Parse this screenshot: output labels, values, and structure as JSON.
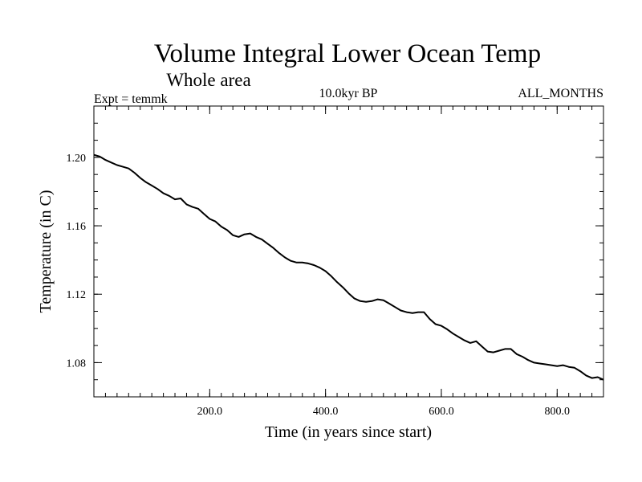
{
  "chart_data": {
    "type": "line",
    "title": "Volume Integral Lower Ocean Temp",
    "subtitle": "Whole area",
    "experiment": "Expt = temmk",
    "period": "10.0kyr BP",
    "months": "ALL_MONTHS",
    "xlabel": "Time (in years since start)",
    "ylabel": "Temperature (in C)",
    "xlim": [
      0,
      880
    ],
    "ylim": [
      1.06,
      1.23
    ],
    "x_major_ticks": [
      200,
      400,
      600,
      800
    ],
    "x_tick_labels": [
      "200.0",
      "400.0",
      "600.0",
      "800.0"
    ],
    "x_minor_step": 20,
    "y_major_ticks": [
      1.08,
      1.12,
      1.16,
      1.2
    ],
    "y_tick_labels": [
      "1.08",
      "1.12",
      "1.16",
      "1.20"
    ],
    "y_minor_step": 0.01,
    "grid": false,
    "series": [
      {
        "name": "temperature",
        "color": "#000000",
        "x": [
          0,
          10,
          20,
          30,
          40,
          50,
          60,
          70,
          80,
          90,
          100,
          110,
          120,
          130,
          140,
          150,
          160,
          170,
          180,
          190,
          200,
          210,
          220,
          230,
          240,
          250,
          260,
          270,
          280,
          290,
          300,
          310,
          320,
          330,
          340,
          350,
          360,
          370,
          380,
          390,
          400,
          410,
          420,
          430,
          440,
          450,
          460,
          470,
          480,
          490,
          500,
          510,
          520,
          530,
          540,
          550,
          560,
          570,
          580,
          590,
          600,
          610,
          620,
          630,
          640,
          650,
          660,
          670,
          680,
          690,
          700,
          710,
          720,
          730,
          740,
          750,
          760,
          770,
          780,
          790,
          800,
          810,
          820,
          830,
          840,
          850,
          860,
          870,
          880
        ],
        "values": [
          1.2015,
          1.2005,
          1.1985,
          1.197,
          1.1955,
          1.1945,
          1.1935,
          1.191,
          1.188,
          1.1855,
          1.1835,
          1.1815,
          1.179,
          1.1775,
          1.1755,
          1.176,
          1.1725,
          1.171,
          1.17,
          1.167,
          1.164,
          1.1625,
          1.1595,
          1.1575,
          1.1545,
          1.1535,
          1.155,
          1.1555,
          1.1535,
          1.152,
          1.1495,
          1.147,
          1.144,
          1.1415,
          1.1395,
          1.1385,
          1.1385,
          1.138,
          1.137,
          1.1355,
          1.1335,
          1.1305,
          1.127,
          1.124,
          1.1205,
          1.1175,
          1.116,
          1.1155,
          1.116,
          1.117,
          1.1165,
          1.1145,
          1.1125,
          1.1105,
          1.1095,
          1.109,
          1.1095,
          1.1095,
          1.1055,
          1.1025,
          1.1015,
          1.0995,
          1.097,
          1.095,
          1.093,
          1.0915,
          1.0925,
          1.0895,
          1.0865,
          1.086,
          1.087,
          1.088,
          1.088,
          1.085,
          1.0835,
          1.0815,
          1.08,
          1.0795,
          1.079,
          1.0785,
          1.078,
          1.0785,
          1.0775,
          1.077,
          1.075,
          1.0725,
          1.071,
          1.0715,
          1.07
        ]
      }
    ]
  }
}
